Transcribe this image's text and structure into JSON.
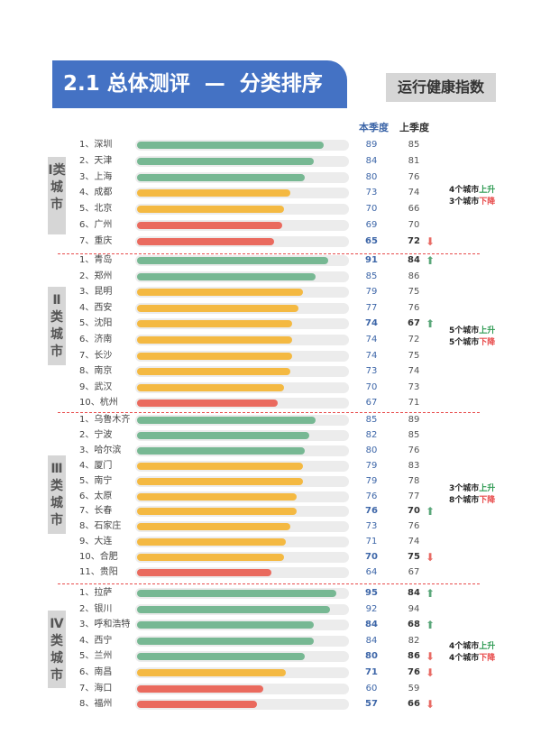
{
  "header": {
    "title": "2.1 总体测评  —  分类排序",
    "badge": "运行健康指数"
  },
  "columns": {
    "current": "本季度",
    "previous": "上季度"
  },
  "colors": {
    "green": "#77b893",
    "yellow": "#f4b942",
    "red": "#ea6a5e",
    "current_text": "#3d66a8",
    "up": "#5aa77a",
    "down": "#e86a64"
  },
  "groups": [
    {
      "label": "Ⅰ类城市",
      "summary_up_count": "4个城市",
      "summary_up": "上升",
      "summary_down_count": "3个城市",
      "summary_down": "下降",
      "rows": [
        {
          "rank": "1、",
          "city": "深圳",
          "color": "green",
          "cur": "89",
          "prev": "85",
          "bold": false,
          "arrow": ""
        },
        {
          "rank": "2、",
          "city": "天津",
          "color": "green",
          "cur": "84",
          "prev": "81",
          "bold": false,
          "arrow": ""
        },
        {
          "rank": "3、",
          "city": "上海",
          "color": "green",
          "cur": "80",
          "prev": "76",
          "bold": false,
          "arrow": ""
        },
        {
          "rank": "4、",
          "city": "成都",
          "color": "yellow",
          "cur": "73",
          "prev": "74",
          "bold": false,
          "arrow": ""
        },
        {
          "rank": "5、",
          "city": "北京",
          "color": "yellow",
          "cur": "70",
          "prev": "66",
          "bold": false,
          "arrow": ""
        },
        {
          "rank": "6、",
          "city": "广州",
          "color": "red",
          "cur": "69",
          "prev": "70",
          "bold": false,
          "arrow": ""
        },
        {
          "rank": "7、",
          "city": "重庆",
          "color": "red",
          "cur": "65",
          "prev": "72",
          "bold": true,
          "arrow": "down"
        }
      ]
    },
    {
      "label": "Ⅱ类城市",
      "summary_up_count": "5个城市",
      "summary_up": "上升",
      "summary_down_count": "5个城市",
      "summary_down": "下降",
      "rows": [
        {
          "rank": "1、",
          "city": "青岛",
          "color": "green",
          "cur": "91",
          "prev": "84",
          "bold": true,
          "arrow": "up"
        },
        {
          "rank": "2、",
          "city": "郑州",
          "color": "green",
          "cur": "85",
          "prev": "86",
          "bold": false,
          "arrow": ""
        },
        {
          "rank": "3、",
          "city": "昆明",
          "color": "yellow",
          "cur": "79",
          "prev": "75",
          "bold": false,
          "arrow": ""
        },
        {
          "rank": "4、",
          "city": "西安",
          "color": "yellow",
          "cur": "77",
          "prev": "76",
          "bold": false,
          "arrow": ""
        },
        {
          "rank": "5、",
          "city": "沈阳",
          "color": "yellow",
          "cur": "74",
          "prev": "67",
          "bold": true,
          "arrow": "up"
        },
        {
          "rank": "6、",
          "city": "济南",
          "color": "yellow",
          "cur": "74",
          "prev": "72",
          "bold": false,
          "arrow": ""
        },
        {
          "rank": "7、",
          "city": "长沙",
          "color": "yellow",
          "cur": "74",
          "prev": "75",
          "bold": false,
          "arrow": ""
        },
        {
          "rank": "8、",
          "city": "南京",
          "color": "yellow",
          "cur": "73",
          "prev": "74",
          "bold": false,
          "arrow": ""
        },
        {
          "rank": "9、",
          "city": "武汉",
          "color": "yellow",
          "cur": "70",
          "prev": "73",
          "bold": false,
          "arrow": ""
        },
        {
          "rank": "10、",
          "city": "杭州",
          "color": "red",
          "cur": "67",
          "prev": "71",
          "bold": false,
          "arrow": ""
        }
      ]
    },
    {
      "label": "Ⅲ类城市",
      "summary_up_count": "3个城市",
      "summary_up": "上升",
      "summary_down_count": "8个城市",
      "summary_down": "下降",
      "rows": [
        {
          "rank": "1、",
          "city": "乌鲁木齐",
          "color": "green",
          "cur": "85",
          "prev": "89",
          "bold": false,
          "arrow": ""
        },
        {
          "rank": "2、",
          "city": "宁波",
          "color": "green",
          "cur": "82",
          "prev": "85",
          "bold": false,
          "arrow": ""
        },
        {
          "rank": "3、",
          "city": "哈尔滨",
          "color": "green",
          "cur": "80",
          "prev": "76",
          "bold": false,
          "arrow": ""
        },
        {
          "rank": "4、",
          "city": "厦门",
          "color": "yellow",
          "cur": "79",
          "prev": "83",
          "bold": false,
          "arrow": ""
        },
        {
          "rank": "5、",
          "city": "南宁",
          "color": "yellow",
          "cur": "79",
          "prev": "78",
          "bold": false,
          "arrow": ""
        },
        {
          "rank": "6、",
          "city": "太原",
          "color": "yellow",
          "cur": "76",
          "prev": "77",
          "bold": false,
          "arrow": ""
        },
        {
          "rank": "7、",
          "city": "长春",
          "color": "yellow",
          "cur": "76",
          "prev": "70",
          "bold": true,
          "arrow": "up"
        },
        {
          "rank": "8、",
          "city": "石家庄",
          "color": "yellow",
          "cur": "73",
          "prev": "76",
          "bold": false,
          "arrow": ""
        },
        {
          "rank": "9、",
          "city": "大连",
          "color": "yellow",
          "cur": "71",
          "prev": "74",
          "bold": false,
          "arrow": ""
        },
        {
          "rank": "10、",
          "city": "合肥",
          "color": "yellow",
          "cur": "70",
          "prev": "75",
          "bold": true,
          "arrow": "down"
        },
        {
          "rank": "11、",
          "city": "贵阳",
          "color": "red",
          "cur": "64",
          "prev": "67",
          "bold": false,
          "arrow": ""
        }
      ]
    },
    {
      "label": "Ⅳ类城市",
      "summary_up_count": "4个城市",
      "summary_up": "上升",
      "summary_down_count": "4个城市",
      "summary_down": "下降",
      "rows": [
        {
          "rank": "1、",
          "city": "拉萨",
          "color": "green",
          "cur": "95",
          "prev": "84",
          "bold": true,
          "arrow": "up"
        },
        {
          "rank": "2、",
          "city": "银川",
          "color": "green",
          "cur": "92",
          "prev": "94",
          "bold": false,
          "arrow": ""
        },
        {
          "rank": "3、",
          "city": "呼和浩特",
          "color": "green",
          "cur": "84",
          "prev": "68",
          "bold": true,
          "arrow": "up"
        },
        {
          "rank": "4、",
          "city": "西宁",
          "color": "green",
          "cur": "84",
          "prev": "82",
          "bold": false,
          "arrow": ""
        },
        {
          "rank": "5、",
          "city": "兰州",
          "color": "green",
          "cur": "80",
          "prev": "86",
          "bold": true,
          "arrow": "down"
        },
        {
          "rank": "6、",
          "city": "南昌",
          "color": "yellow",
          "cur": "71",
          "prev": "76",
          "bold": true,
          "arrow": "down"
        },
        {
          "rank": "7、",
          "city": "海口",
          "color": "red",
          "cur": "60",
          "prev": "59",
          "bold": false,
          "arrow": ""
        },
        {
          "rank": "8、",
          "city": "福州",
          "color": "red",
          "cur": "57",
          "prev": "66",
          "bold": true,
          "arrow": "down"
        }
      ]
    }
  ]
}
